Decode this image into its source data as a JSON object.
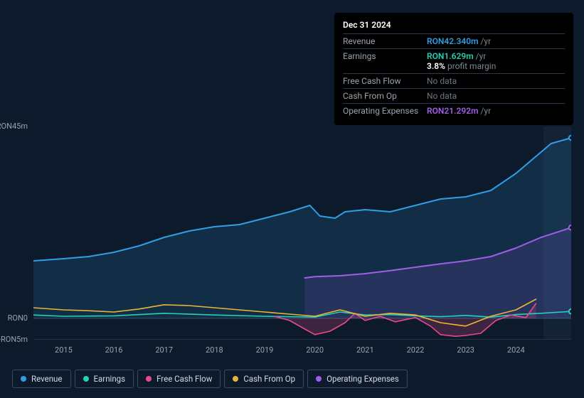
{
  "background_color": "#0d1a2b",
  "tooltip": {
    "date": "Dec 31 2024",
    "rows": [
      {
        "label": "Revenue",
        "value": "RON42.340m",
        "value_color": "#2e9fe6",
        "suffix": "/yr"
      },
      {
        "label": "Earnings",
        "value": "RON1.629m",
        "value_color": "#25d0b4",
        "suffix": "/yr",
        "extra": "3.8%",
        "extra_label": "profit margin"
      },
      {
        "label": "Free Cash Flow",
        "nodata": "No data"
      },
      {
        "label": "Cash From Op",
        "nodata": "No data"
      },
      {
        "label": "Operating Expenses",
        "value": "RON21.292m",
        "value_color": "#a05ee8",
        "suffix": "/yr"
      }
    ]
  },
  "chart": {
    "type": "area-line",
    "x_labels": [
      "2015",
      "2016",
      "2017",
      "2018",
      "2019",
      "2020",
      "2021",
      "2022",
      "2023",
      "2024"
    ],
    "y_labels": [
      {
        "text": "RON45m",
        "v": 45
      },
      {
        "text": "RON0",
        "v": 0
      },
      {
        "text": "-RON5m",
        "v": -5
      }
    ],
    "y_min": -5,
    "y_max": 45,
    "x_min": 2014.4,
    "x_max": 2025.1,
    "fill_to_zero": true,
    "future_cutoff": 2024.55,
    "future_overlay_color": "#1a2a3d",
    "series": {
      "revenue": {
        "label": "Revenue",
        "color": "#2e9fe6",
        "fill": true,
        "fill_opacity": 0.15,
        "stroke_width": 2,
        "data": [
          [
            2014.4,
            13.5
          ],
          [
            2015,
            14
          ],
          [
            2015.5,
            14.5
          ],
          [
            2016,
            15.5
          ],
          [
            2016.5,
            17
          ],
          [
            2017,
            19
          ],
          [
            2017.5,
            20.5
          ],
          [
            2018,
            21.5
          ],
          [
            2018.5,
            22
          ],
          [
            2019,
            23.5
          ],
          [
            2019.5,
            25
          ],
          [
            2019.9,
            26.5
          ],
          [
            2020.1,
            24
          ],
          [
            2020.4,
            23.5
          ],
          [
            2020.6,
            25
          ],
          [
            2021,
            25.5
          ],
          [
            2021.5,
            25
          ],
          [
            2022,
            26.5
          ],
          [
            2022.5,
            28
          ],
          [
            2023,
            28.5
          ],
          [
            2023.5,
            30
          ],
          [
            2024,
            34
          ],
          [
            2024.4,
            38
          ],
          [
            2024.7,
            41
          ],
          [
            2025.1,
            42.34
          ]
        ]
      },
      "earnings": {
        "label": "Earnings",
        "color": "#25d0b4",
        "fill": false,
        "stroke_width": 1.6,
        "data": [
          [
            2014.4,
            0.8
          ],
          [
            2015,
            0.5
          ],
          [
            2016,
            0.6
          ],
          [
            2017,
            1.2
          ],
          [
            2018,
            0.8
          ],
          [
            2019,
            0.5
          ],
          [
            2020,
            0.3
          ],
          [
            2020.5,
            1.5
          ],
          [
            2021,
            0.8
          ],
          [
            2021.5,
            0.9
          ],
          [
            2022,
            0.6
          ],
          [
            2022.5,
            0.4
          ],
          [
            2023,
            0.7
          ],
          [
            2023.5,
            0.3
          ],
          [
            2024,
            0.9
          ],
          [
            2024.5,
            1.2
          ],
          [
            2025.1,
            1.63
          ]
        ]
      },
      "free_cash_flow": {
        "label": "Free Cash Flow",
        "color": "#e84a8a",
        "fill": true,
        "fill_opacity": 0.22,
        "stroke_width": 1.6,
        "data": [
          [
            2019.2,
            0.5
          ],
          [
            2019.5,
            -0.5
          ],
          [
            2019.8,
            -2.5
          ],
          [
            2020,
            -3.8
          ],
          [
            2020.3,
            -3
          ],
          [
            2020.6,
            -1
          ],
          [
            2020.8,
            1.2
          ],
          [
            2021,
            -0.5
          ],
          [
            2021.3,
            0.5
          ],
          [
            2021.6,
            -0.8
          ],
          [
            2022,
            0.2
          ],
          [
            2022.3,
            -1.8
          ],
          [
            2022.5,
            -3.8
          ],
          [
            2022.8,
            -4.2
          ],
          [
            2023,
            -4
          ],
          [
            2023.3,
            -3.5
          ],
          [
            2023.6,
            -0.5
          ],
          [
            2023.9,
            0.8
          ],
          [
            2024.2,
            0.2
          ],
          [
            2024.4,
            3.5
          ]
        ]
      },
      "cash_from_op": {
        "label": "Cash From Op",
        "color": "#eab63a",
        "fill": false,
        "stroke_width": 1.6,
        "data": [
          [
            2014.4,
            2.5
          ],
          [
            2015,
            2
          ],
          [
            2015.5,
            1.8
          ],
          [
            2016,
            1.5
          ],
          [
            2016.5,
            2.2
          ],
          [
            2017,
            3.2
          ],
          [
            2017.5,
            3
          ],
          [
            2018,
            2.5
          ],
          [
            2018.5,
            2
          ],
          [
            2019,
            1.5
          ],
          [
            2019.5,
            1
          ],
          [
            2020,
            0.5
          ],
          [
            2020.5,
            2
          ],
          [
            2021,
            0.5
          ],
          [
            2021.5,
            1.2
          ],
          [
            2022,
            0.8
          ],
          [
            2022.5,
            -1
          ],
          [
            2023,
            -1.8
          ],
          [
            2023.5,
            0.5
          ],
          [
            2024,
            2
          ],
          [
            2024.4,
            4.5
          ]
        ]
      },
      "operating_expenses": {
        "label": "Operating Expenses",
        "color": "#a05ee8",
        "fill": true,
        "fill_opacity": 0.14,
        "stroke_width": 2,
        "data": [
          [
            2019.8,
            9.5
          ],
          [
            2020,
            9.8
          ],
          [
            2020.5,
            10
          ],
          [
            2021,
            10.5
          ],
          [
            2021.5,
            11.2
          ],
          [
            2022,
            12
          ],
          [
            2022.5,
            12.8
          ],
          [
            2023,
            13.5
          ],
          [
            2023.5,
            14.5
          ],
          [
            2024,
            16.5
          ],
          [
            2024.5,
            19
          ],
          [
            2025.1,
            21.29
          ]
        ]
      }
    },
    "legend_order": [
      "revenue",
      "earnings",
      "free_cash_flow",
      "cash_from_op",
      "operating_expenses"
    ],
    "marker_radius": 3.2
  }
}
